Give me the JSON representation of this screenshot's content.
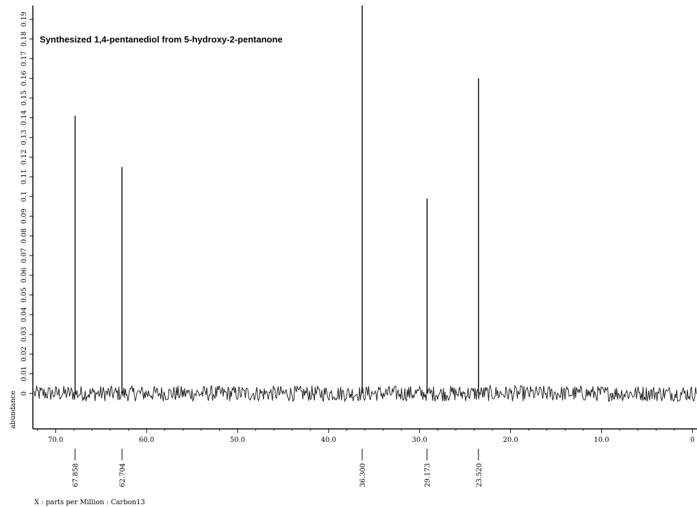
{
  "chart_data": {
    "type": "line",
    "title": "Synthesized 1,4-pentanediol from 5-hydroxy-2-pentanone",
    "xlabel": "X : parts per Million : Carbon13",
    "ylabel": "abundance",
    "x_reversed": true,
    "xlim": [
      72.5,
      -0.5
    ],
    "ylim": [
      -0.018,
      0.197
    ],
    "x_ticks": [
      70.0,
      60.0,
      50.0,
      40.0,
      30.0,
      20.0,
      10.0,
      0
    ],
    "x_tick_labels": [
      "70.0",
      "60.0",
      "50.0",
      "40.0",
      "30.0",
      "20.0",
      "10.0",
      "0"
    ],
    "y_ticks": [
      0,
      0.01,
      0.02,
      0.03,
      0.04,
      0.05,
      0.06,
      0.07,
      0.08,
      0.09,
      0.1,
      0.11,
      0.12,
      0.13,
      0.14,
      0.15,
      0.16,
      0.17,
      0.18,
      0.19
    ],
    "y_tick_labels": [
      "0",
      "0.01",
      "0.02",
      "0.03",
      "0.04",
      "0.05",
      "0.06",
      "0.07",
      "0.08",
      "0.09",
      "0.1",
      "0.11",
      "0.12",
      "0.13",
      "0.14",
      "0.15",
      "0.16",
      "0.17",
      "0.18",
      "0.19"
    ],
    "grid": false,
    "baseline": 0,
    "noise_amplitude": 0.004,
    "peaks": [
      {
        "ppm": 67.858,
        "label": "67.858",
        "height": 0.141
      },
      {
        "ppm": 62.704,
        "label": "62.704",
        "height": 0.115
      },
      {
        "ppm": 36.3,
        "label": "36.300",
        "height": 0.197
      },
      {
        "ppm": 29.173,
        "label": "29.173",
        "height": 0.099
      },
      {
        "ppm": 23.52,
        "label": "23.520",
        "height": 0.16
      }
    ],
    "colors": {
      "spectrum": "#1c1c1c",
      "axis": "#000000"
    }
  }
}
